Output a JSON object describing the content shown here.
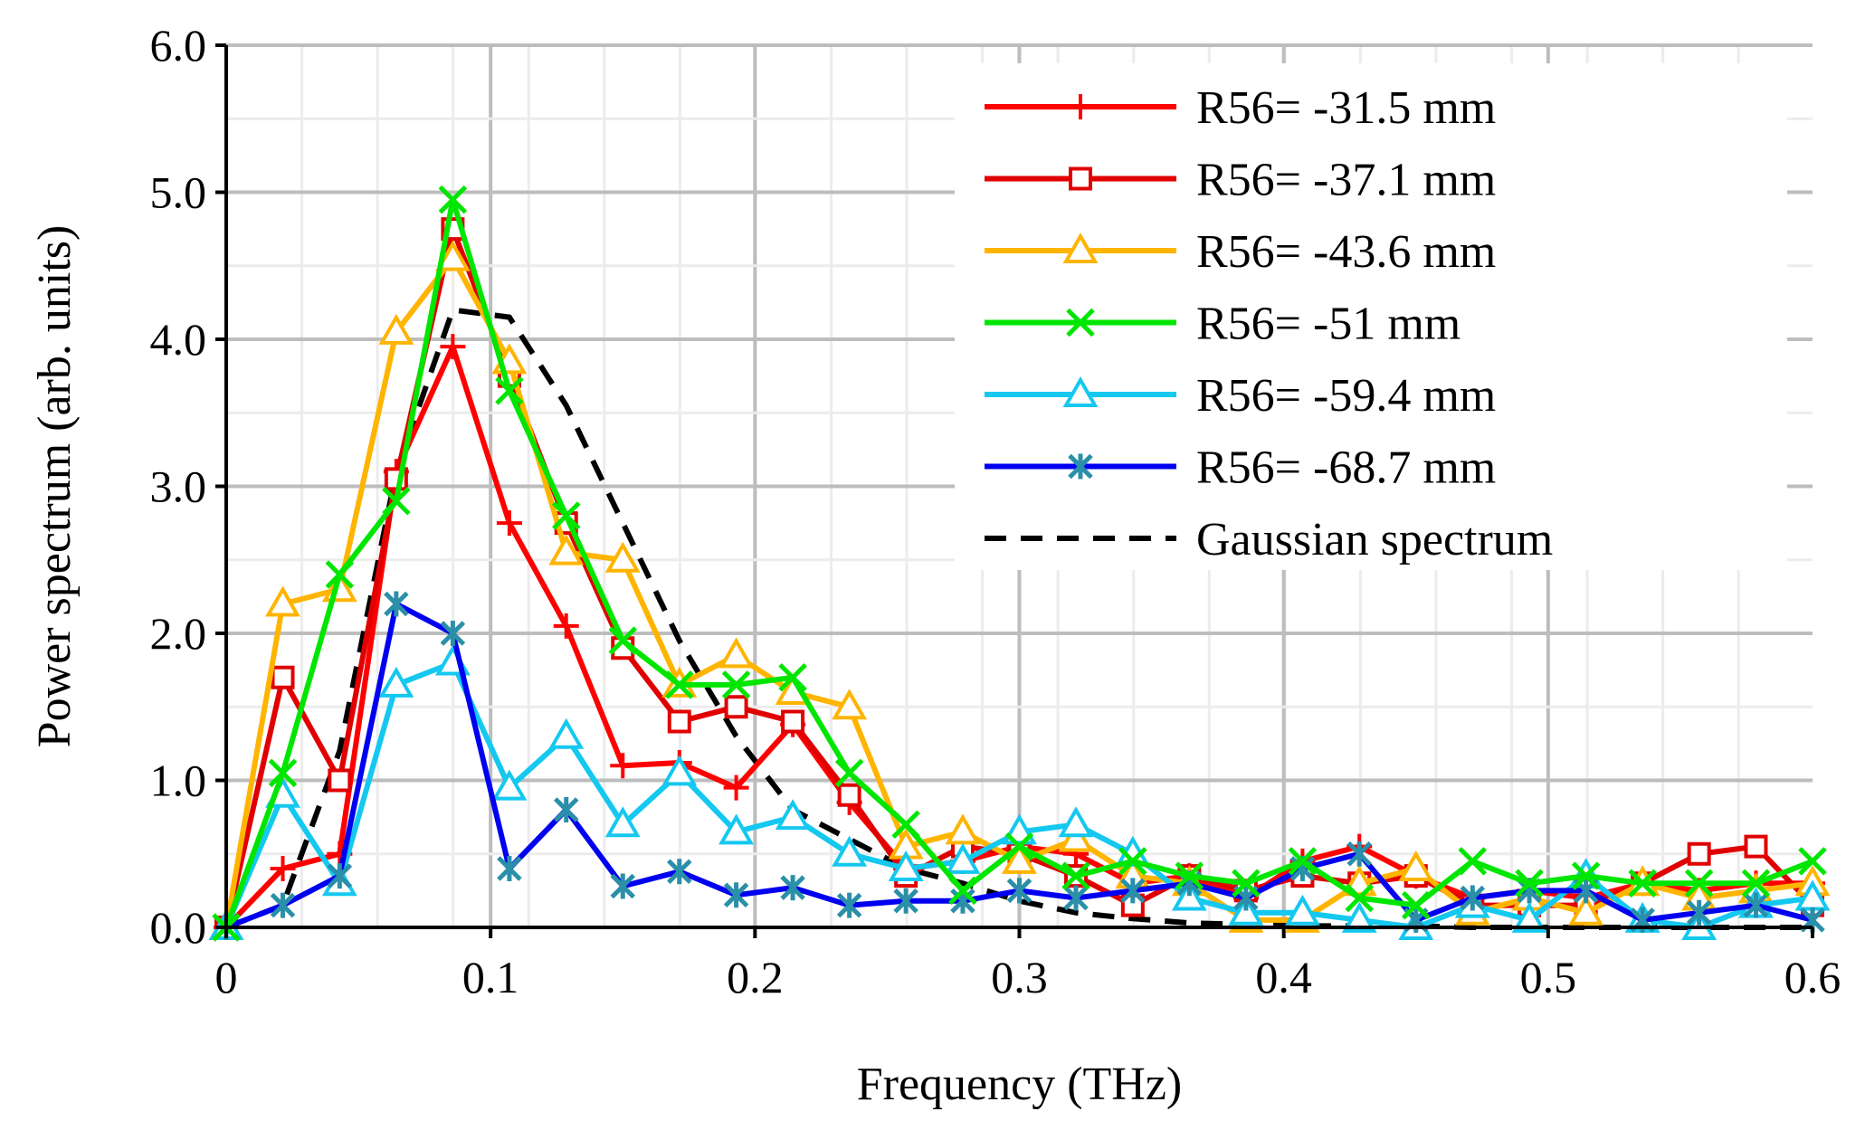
{
  "chart_data": {
    "type": "line",
    "title": "",
    "xlabel": "Frequency (THz)",
    "ylabel": "Power spectrum (arb. units)",
    "xlim": [
      0,
      0.6
    ],
    "ylim": [
      0,
      6.0
    ],
    "xticks": [
      0,
      0.1,
      0.2,
      0.3,
      0.4,
      0.5,
      0.6
    ],
    "xtick_labels": [
      "0",
      "0.1",
      "0.2",
      "0.3",
      "0.4",
      "0.5",
      "0.6"
    ],
    "yticks": [
      0,
      1,
      2,
      3,
      4,
      5,
      6
    ],
    "ytick_labels": [
      "0.0",
      "1.0",
      "2.0",
      "3.0",
      "4.0",
      "5.0",
      "6.0"
    ],
    "grid": true,
    "legend_position": "top-right",
    "x": [
      0,
      0.0214,
      0.0429,
      0.0643,
      0.0857,
      0.1071,
      0.1286,
      0.15,
      0.1714,
      0.1929,
      0.2143,
      0.2357,
      0.2571,
      0.2786,
      0.3,
      0.3214,
      0.3429,
      0.3643,
      0.3857,
      0.4071,
      0.4286,
      0.45,
      0.4714,
      0.4929,
      0.5143,
      0.5357,
      0.5571,
      0.5786,
      0.6
    ],
    "series": [
      {
        "name": "R56= -31.5 mm",
        "color": "#ff0000",
        "marker": "plus",
        "values": [
          0,
          0.4,
          0.5,
          3.1,
          3.95,
          2.75,
          2.05,
          1.1,
          1.12,
          0.95,
          1.38,
          0.85,
          0.4,
          0.45,
          0.55,
          0.5,
          0.3,
          0.35,
          0.2,
          0.45,
          0.55,
          0.35,
          0.2,
          0.25,
          0.2,
          0.3,
          0.25,
          0.3,
          0.3
        ]
      },
      {
        "name": "R56= -37.1 mm",
        "color": "#e00000",
        "marker": "square",
        "values": [
          0,
          1.7,
          1.0,
          3.05,
          4.75,
          3.75,
          2.75,
          1.9,
          1.4,
          1.5,
          1.4,
          0.9,
          0.35,
          0.55,
          0.5,
          0.35,
          0.15,
          0.35,
          0.25,
          0.35,
          0.3,
          0.35,
          0.15,
          0.15,
          0.15,
          0.3,
          0.5,
          0.55,
          0.15
        ]
      },
      {
        "name": "R56= -43.6 mm",
        "color": "#ffb400",
        "marker": "triangle",
        "values": [
          0,
          2.2,
          2.3,
          4.05,
          4.55,
          3.85,
          2.55,
          2.5,
          1.65,
          1.85,
          1.6,
          1.5,
          0.55,
          0.65,
          0.45,
          0.6,
          0.35,
          0.3,
          0.05,
          0.05,
          0.3,
          0.4,
          0.1,
          0.2,
          0.1,
          0.3,
          0.2,
          0.25,
          0.3
        ]
      },
      {
        "name": "R56= -51 mm",
        "color": "#00e600",
        "marker": "x",
        "values": [
          0,
          1.05,
          2.4,
          2.9,
          4.95,
          3.65,
          2.8,
          1.95,
          1.65,
          1.65,
          1.7,
          1.05,
          0.7,
          0.25,
          0.55,
          0.35,
          0.45,
          0.35,
          0.3,
          0.45,
          0.2,
          0.15,
          0.45,
          0.3,
          0.35,
          0.3,
          0.3,
          0.3,
          0.45
        ]
      },
      {
        "name": "R56= -59.4 mm",
        "color": "#14c8f0",
        "marker": "triangle",
        "values": [
          0,
          0.9,
          0.3,
          1.65,
          1.8,
          0.95,
          1.3,
          0.7,
          1.05,
          0.65,
          0.75,
          0.5,
          0.4,
          0.45,
          0.65,
          0.7,
          0.5,
          0.2,
          0.1,
          0.1,
          0.05,
          0.0,
          0.15,
          0.05,
          0.35,
          0.05,
          0.0,
          0.15,
          0.2
        ]
      },
      {
        "name": "R56= -68.7 mm",
        "color": "#0000f0",
        "marker": "asterisk",
        "values": [
          0,
          0.15,
          0.35,
          2.2,
          2.0,
          0.4,
          0.8,
          0.28,
          0.38,
          0.22,
          0.27,
          0.15,
          0.18,
          0.18,
          0.25,
          0.2,
          0.25,
          0.3,
          0.2,
          0.4,
          0.5,
          0.05,
          0.2,
          0.25,
          0.25,
          0.05,
          0.1,
          0.15,
          0.05
        ]
      },
      {
        "name": "Gaussian spectrum",
        "color": "#000000",
        "marker": "none",
        "dashed": true,
        "values": [
          0,
          0.15,
          1.2,
          3.1,
          4.2,
          4.15,
          3.55,
          2.75,
          1.95,
          1.3,
          0.8,
          0.6,
          0.4,
          0.3,
          0.18,
          0.1,
          0.06,
          0.03,
          0.02,
          0.01,
          0.01,
          0.01,
          0.0,
          0.0,
          0.0,
          0.0,
          0.0,
          0.0,
          0.0
        ]
      }
    ]
  }
}
